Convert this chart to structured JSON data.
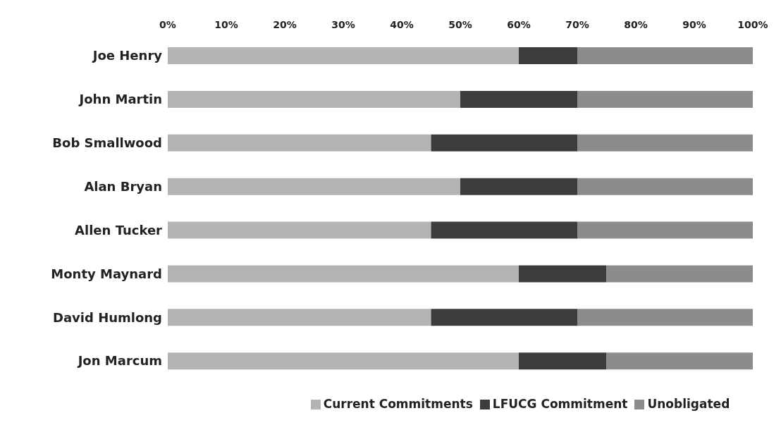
{
  "chart_data": {
    "type": "bar",
    "orientation": "horizontal",
    "stacked": true,
    "categories": [
      "Joe Henry",
      "John Martin",
      "Bob Smallwood",
      "Alan Bryan",
      "Allen Tucker",
      "Monty Maynard",
      "David Humlong",
      "Jon Marcum"
    ],
    "series": [
      {
        "name": "Current Commitments",
        "color": "#b4b4b4",
        "values": [
          60,
          50,
          45,
          50,
          45,
          60,
          45,
          60
        ]
      },
      {
        "name": "LFUCG Commitment",
        "color": "#3c3c3c",
        "values": [
          10,
          20,
          25,
          20,
          25,
          15,
          25,
          15
        ]
      },
      {
        "name": "Unobligated",
        "color": "#8c8c8c",
        "values": [
          30,
          30,
          30,
          30,
          30,
          25,
          30,
          25
        ]
      }
    ],
    "xlim": [
      0,
      100
    ],
    "xticks": [
      {
        "value": 0,
        "label": "0%"
      },
      {
        "value": 10,
        "label": "10%"
      },
      {
        "value": 20,
        "label": "20%"
      },
      {
        "value": 30,
        "label": "30%"
      },
      {
        "value": 40,
        "label": "40%"
      },
      {
        "value": 50,
        "label": "50%"
      },
      {
        "value": 60,
        "label": "60%"
      },
      {
        "value": 70,
        "label": "70%"
      },
      {
        "value": 80,
        "label": "80%"
      },
      {
        "value": 90,
        "label": "90%"
      },
      {
        "value": 100,
        "label": "100%"
      }
    ],
    "grid": false,
    "legend": "bottom"
  }
}
